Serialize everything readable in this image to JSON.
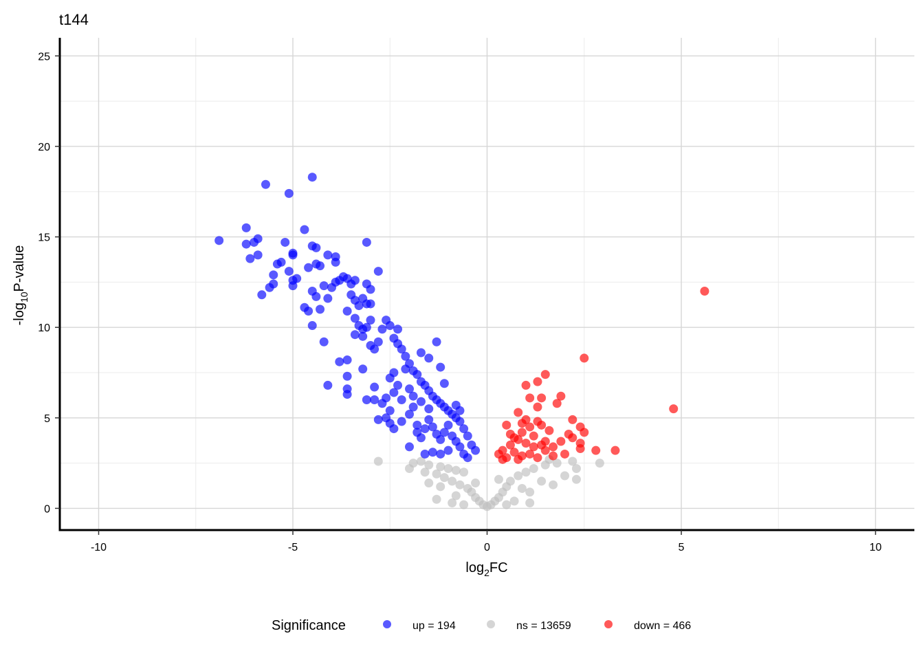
{
  "chart_data": {
    "type": "scatter",
    "title": "t144",
    "xlabel_base": "log",
    "xlabel_sub": "2",
    "xlabel_rest": "FC",
    "ylabel_pre": "-log",
    "ylabel_sub": "10",
    "ylabel_rest": "P-value",
    "xlim": [
      -11,
      11
    ],
    "ylim": [
      -1.2,
      26
    ],
    "x_ticks": [
      -10,
      -5,
      0,
      5,
      10
    ],
    "x_tick_labels": [
      "-10",
      "-5",
      "0",
      "5",
      "10"
    ],
    "y_ticks": [
      0,
      5,
      10,
      15,
      20,
      25
    ],
    "y_tick_labels": [
      "0",
      "5",
      "10",
      "15",
      "20",
      "25"
    ],
    "grid": true,
    "legend_position": "bottom",
    "legend": {
      "title": "Significance",
      "entries": [
        {
          "label": "up = 194",
          "color": "#0000ff"
        },
        {
          "label": "ns = 13659",
          "color": "#bebebe"
        },
        {
          "label": "down = 466",
          "color": "#ff0000"
        }
      ]
    },
    "series": [
      {
        "key": "ns",
        "color": "#bebebe",
        "points": [
          [
            -2.8,
            2.6
          ],
          [
            -1.9,
            2.5
          ],
          [
            -1.5,
            2.4
          ],
          [
            -1.2,
            2.3
          ],
          [
            -1.0,
            2.2
          ],
          [
            -0.8,
            2.1
          ],
          [
            -0.6,
            2.0
          ],
          [
            -1.3,
            1.9
          ],
          [
            -1.1,
            1.7
          ],
          [
            -0.9,
            1.5
          ],
          [
            -0.7,
            1.3
          ],
          [
            -0.5,
            1.1
          ],
          [
            -0.4,
            0.9
          ],
          [
            -0.3,
            0.6
          ],
          [
            -0.2,
            0.4
          ],
          [
            -0.1,
            0.2
          ],
          [
            0.0,
            0.1
          ],
          [
            0.1,
            0.2
          ],
          [
            0.2,
            0.4
          ],
          [
            0.3,
            0.6
          ],
          [
            0.4,
            0.9
          ],
          [
            0.5,
            1.2
          ],
          [
            0.6,
            1.5
          ],
          [
            0.8,
            1.8
          ],
          [
            1.0,
            2.0
          ],
          [
            1.2,
            2.2
          ],
          [
            1.5,
            2.4
          ],
          [
            1.8,
            2.5
          ],
          [
            2.2,
            2.6
          ],
          [
            2.3,
            2.2
          ],
          [
            2.3,
            1.6
          ],
          [
            2.9,
            2.5
          ],
          [
            1.7,
            1.3
          ],
          [
            1.1,
            0.9
          ],
          [
            0.9,
            1.1
          ],
          [
            -1.5,
            1.4
          ],
          [
            -1.2,
            1.2
          ],
          [
            -0.8,
            0.7
          ],
          [
            -1.3,
            0.5
          ],
          [
            -0.9,
            0.3
          ],
          [
            0.7,
            0.4
          ],
          [
            1.1,
            0.3
          ],
          [
            0.5,
            0.2
          ],
          [
            -0.6,
            0.2
          ],
          [
            -0.3,
            1.4
          ],
          [
            0.3,
            1.6
          ],
          [
            -1.6,
            2.0
          ],
          [
            1.4,
            1.5
          ],
          [
            -1.7,
            2.6
          ],
          [
            -2.0,
            2.2
          ],
          [
            1.6,
            2.7
          ],
          [
            2.0,
            1.8
          ]
        ]
      },
      {
        "key": "up",
        "color": "#0000ff",
        "points": [
          [
            -6.9,
            14.8
          ],
          [
            -6.2,
            15.5
          ],
          [
            -6.0,
            14.7
          ],
          [
            -6.2,
            14.6
          ],
          [
            -5.9,
            14.9
          ],
          [
            -6.1,
            13.8
          ],
          [
            -5.9,
            14.0
          ],
          [
            -5.7,
            17.9
          ],
          [
            -5.1,
            17.4
          ],
          [
            -4.5,
            18.3
          ],
          [
            -5.8,
            11.8
          ],
          [
            -5.6,
            12.2
          ],
          [
            -5.5,
            12.4
          ],
          [
            -5.5,
            12.9
          ],
          [
            -5.4,
            13.5
          ],
          [
            -5.3,
            13.6
          ],
          [
            -5.2,
            14.7
          ],
          [
            -5.0,
            14.0
          ],
          [
            -5.0,
            14.1
          ],
          [
            -5.1,
            13.1
          ],
          [
            -5.0,
            12.6
          ],
          [
            -4.9,
            12.7
          ],
          [
            -5.0,
            12.3
          ],
          [
            -4.7,
            15.4
          ],
          [
            -4.5,
            14.5
          ],
          [
            -4.4,
            14.4
          ],
          [
            -4.6,
            13.3
          ],
          [
            -4.4,
            13.5
          ],
          [
            -4.3,
            13.4
          ],
          [
            -4.5,
            12.0
          ],
          [
            -4.4,
            11.7
          ],
          [
            -4.2,
            12.3
          ],
          [
            -4.1,
            11.6
          ],
          [
            -4.3,
            11.0
          ],
          [
            -4.6,
            10.9
          ],
          [
            -4.7,
            11.1
          ],
          [
            -4.5,
            10.1
          ],
          [
            -4.2,
            9.2
          ],
          [
            -4.1,
            14.0
          ],
          [
            -3.9,
            13.9
          ],
          [
            -3.9,
            13.6
          ],
          [
            -4.0,
            12.2
          ],
          [
            -3.9,
            12.5
          ],
          [
            -3.8,
            12.6
          ],
          [
            -3.7,
            12.8
          ],
          [
            -3.6,
            12.7
          ],
          [
            -3.5,
            12.4
          ],
          [
            -3.4,
            12.6
          ],
          [
            -3.5,
            11.8
          ],
          [
            -3.4,
            11.5
          ],
          [
            -3.2,
            11.6
          ],
          [
            -3.3,
            11.2
          ],
          [
            -3.1,
            11.3
          ],
          [
            -3.0,
            11.3
          ],
          [
            -3.6,
            10.9
          ],
          [
            -3.4,
            10.5
          ],
          [
            -3.3,
            10.1
          ],
          [
            -3.2,
            9.9
          ],
          [
            -3.1,
            10.0
          ],
          [
            -3.0,
            10.4
          ],
          [
            -3.4,
            9.6
          ],
          [
            -3.2,
            9.5
          ],
          [
            -3.0,
            9.0
          ],
          [
            -3.6,
            8.2
          ],
          [
            -3.8,
            8.1
          ],
          [
            -4.1,
            6.8
          ],
          [
            -3.6,
            6.6
          ],
          [
            -3.6,
            6.3
          ],
          [
            -3.6,
            7.3
          ],
          [
            -3.1,
            14.7
          ],
          [
            -3.0,
            12.1
          ],
          [
            -2.8,
            13.1
          ],
          [
            -3.1,
            12.4
          ],
          [
            -2.7,
            9.9
          ],
          [
            -2.8,
            9.2
          ],
          [
            -2.9,
            8.8
          ],
          [
            -2.6,
            10.4
          ],
          [
            -2.5,
            10.1
          ],
          [
            -2.3,
            9.9
          ],
          [
            -2.4,
            9.4
          ],
          [
            -2.3,
            9.1
          ],
          [
            -2.2,
            8.8
          ],
          [
            -2.1,
            8.4
          ],
          [
            -2.0,
            8.0
          ],
          [
            -1.9,
            7.6
          ],
          [
            -1.8,
            7.4
          ],
          [
            -1.7,
            7.0
          ],
          [
            -1.6,
            6.8
          ],
          [
            -1.5,
            6.5
          ],
          [
            -1.4,
            6.2
          ],
          [
            -1.3,
            6.0
          ],
          [
            -1.2,
            5.8
          ],
          [
            -1.1,
            5.6
          ],
          [
            -1.0,
            5.4
          ],
          [
            -0.9,
            5.2
          ],
          [
            -0.8,
            5.0
          ],
          [
            -0.7,
            4.8
          ],
          [
            -0.6,
            4.4
          ],
          [
            -0.5,
            4.0
          ],
          [
            -0.4,
            3.5
          ],
          [
            -0.3,
            3.2
          ],
          [
            -1.3,
            9.2
          ],
          [
            -1.2,
            7.8
          ],
          [
            -1.5,
            8.3
          ],
          [
            -1.7,
            8.6
          ],
          [
            -2.1,
            7.7
          ],
          [
            -2.4,
            7.5
          ],
          [
            -2.5,
            7.2
          ],
          [
            -2.3,
            6.8
          ],
          [
            -2.4,
            6.4
          ],
          [
            -2.6,
            6.1
          ],
          [
            -2.7,
            5.8
          ],
          [
            -2.5,
            5.4
          ],
          [
            -2.6,
            5.0
          ],
          [
            -2.5,
            4.7
          ],
          [
            -2.4,
            4.4
          ],
          [
            -2.2,
            4.8
          ],
          [
            -2.0,
            5.2
          ],
          [
            -1.9,
            5.6
          ],
          [
            -1.8,
            4.6
          ],
          [
            -1.8,
            4.2
          ],
          [
            -1.7,
            3.9
          ],
          [
            -1.6,
            4.4
          ],
          [
            -1.5,
            4.9
          ],
          [
            -1.4,
            4.5
          ],
          [
            -1.3,
            4.1
          ],
          [
            -1.2,
            3.8
          ],
          [
            -1.1,
            4.2
          ],
          [
            -1.0,
            4.6
          ],
          [
            -0.9,
            4.0
          ],
          [
            -0.8,
            3.7
          ],
          [
            -0.7,
            3.4
          ],
          [
            -0.6,
            3.0
          ],
          [
            -0.5,
            2.8
          ],
          [
            -1.0,
            3.2
          ],
          [
            -1.2,
            3.0
          ],
          [
            -1.4,
            3.1
          ],
          [
            -1.6,
            3.0
          ],
          [
            -2.0,
            3.4
          ],
          [
            -2.8,
            4.9
          ],
          [
            -2.9,
            6.0
          ],
          [
            -3.2,
            7.7
          ],
          [
            -3.1,
            6.0
          ],
          [
            -2.9,
            6.7
          ],
          [
            -2.2,
            6.0
          ],
          [
            -2.0,
            6.6
          ],
          [
            -1.9,
            6.2
          ],
          [
            -1.7,
            5.9
          ],
          [
            -1.5,
            5.5
          ],
          [
            -1.1,
            6.9
          ],
          [
            -0.8,
            5.7
          ],
          [
            -0.7,
            5.4
          ]
        ]
      },
      {
        "key": "down",
        "color": "#ff0000",
        "points": [
          [
            5.6,
            12.0
          ],
          [
            4.8,
            5.5
          ],
          [
            2.5,
            8.3
          ],
          [
            1.5,
            7.4
          ],
          [
            1.3,
            7.0
          ],
          [
            1.0,
            6.8
          ],
          [
            1.9,
            6.2
          ],
          [
            1.1,
            6.1
          ],
          [
            1.4,
            6.1
          ],
          [
            1.8,
            5.8
          ],
          [
            1.3,
            5.6
          ],
          [
            0.8,
            5.3
          ],
          [
            2.2,
            4.9
          ],
          [
            0.5,
            4.6
          ],
          [
            0.9,
            4.7
          ],
          [
            1.1,
            4.5
          ],
          [
            1.3,
            4.8
          ],
          [
            2.4,
            4.5
          ],
          [
            2.5,
            4.2
          ],
          [
            2.1,
            4.1
          ],
          [
            2.2,
            3.9
          ],
          [
            1.9,
            3.7
          ],
          [
            2.4,
            3.6
          ],
          [
            2.4,
            3.3
          ],
          [
            2.8,
            3.2
          ],
          [
            3.3,
            3.2
          ],
          [
            2.0,
            3.0
          ],
          [
            1.7,
            2.9
          ],
          [
            1.5,
            3.2
          ],
          [
            1.2,
            3.4
          ],
          [
            1.0,
            3.6
          ],
          [
            0.8,
            3.8
          ],
          [
            0.6,
            3.5
          ],
          [
            0.4,
            3.2
          ],
          [
            0.3,
            3.0
          ],
          [
            0.5,
            2.8
          ],
          [
            0.7,
            3.1
          ],
          [
            0.9,
            2.9
          ],
          [
            1.1,
            3.0
          ],
          [
            1.3,
            2.8
          ],
          [
            0.6,
            4.1
          ],
          [
            0.9,
            4.2
          ],
          [
            1.2,
            4.0
          ],
          [
            1.5,
            3.7
          ],
          [
            1.7,
            3.4
          ],
          [
            0.4,
            2.7
          ],
          [
            0.8,
            2.7
          ],
          [
            1.4,
            3.5
          ],
          [
            1.6,
            4.3
          ],
          [
            0.7,
            3.9
          ],
          [
            1.0,
            4.9
          ],
          [
            1.4,
            4.6
          ]
        ]
      }
    ]
  }
}
